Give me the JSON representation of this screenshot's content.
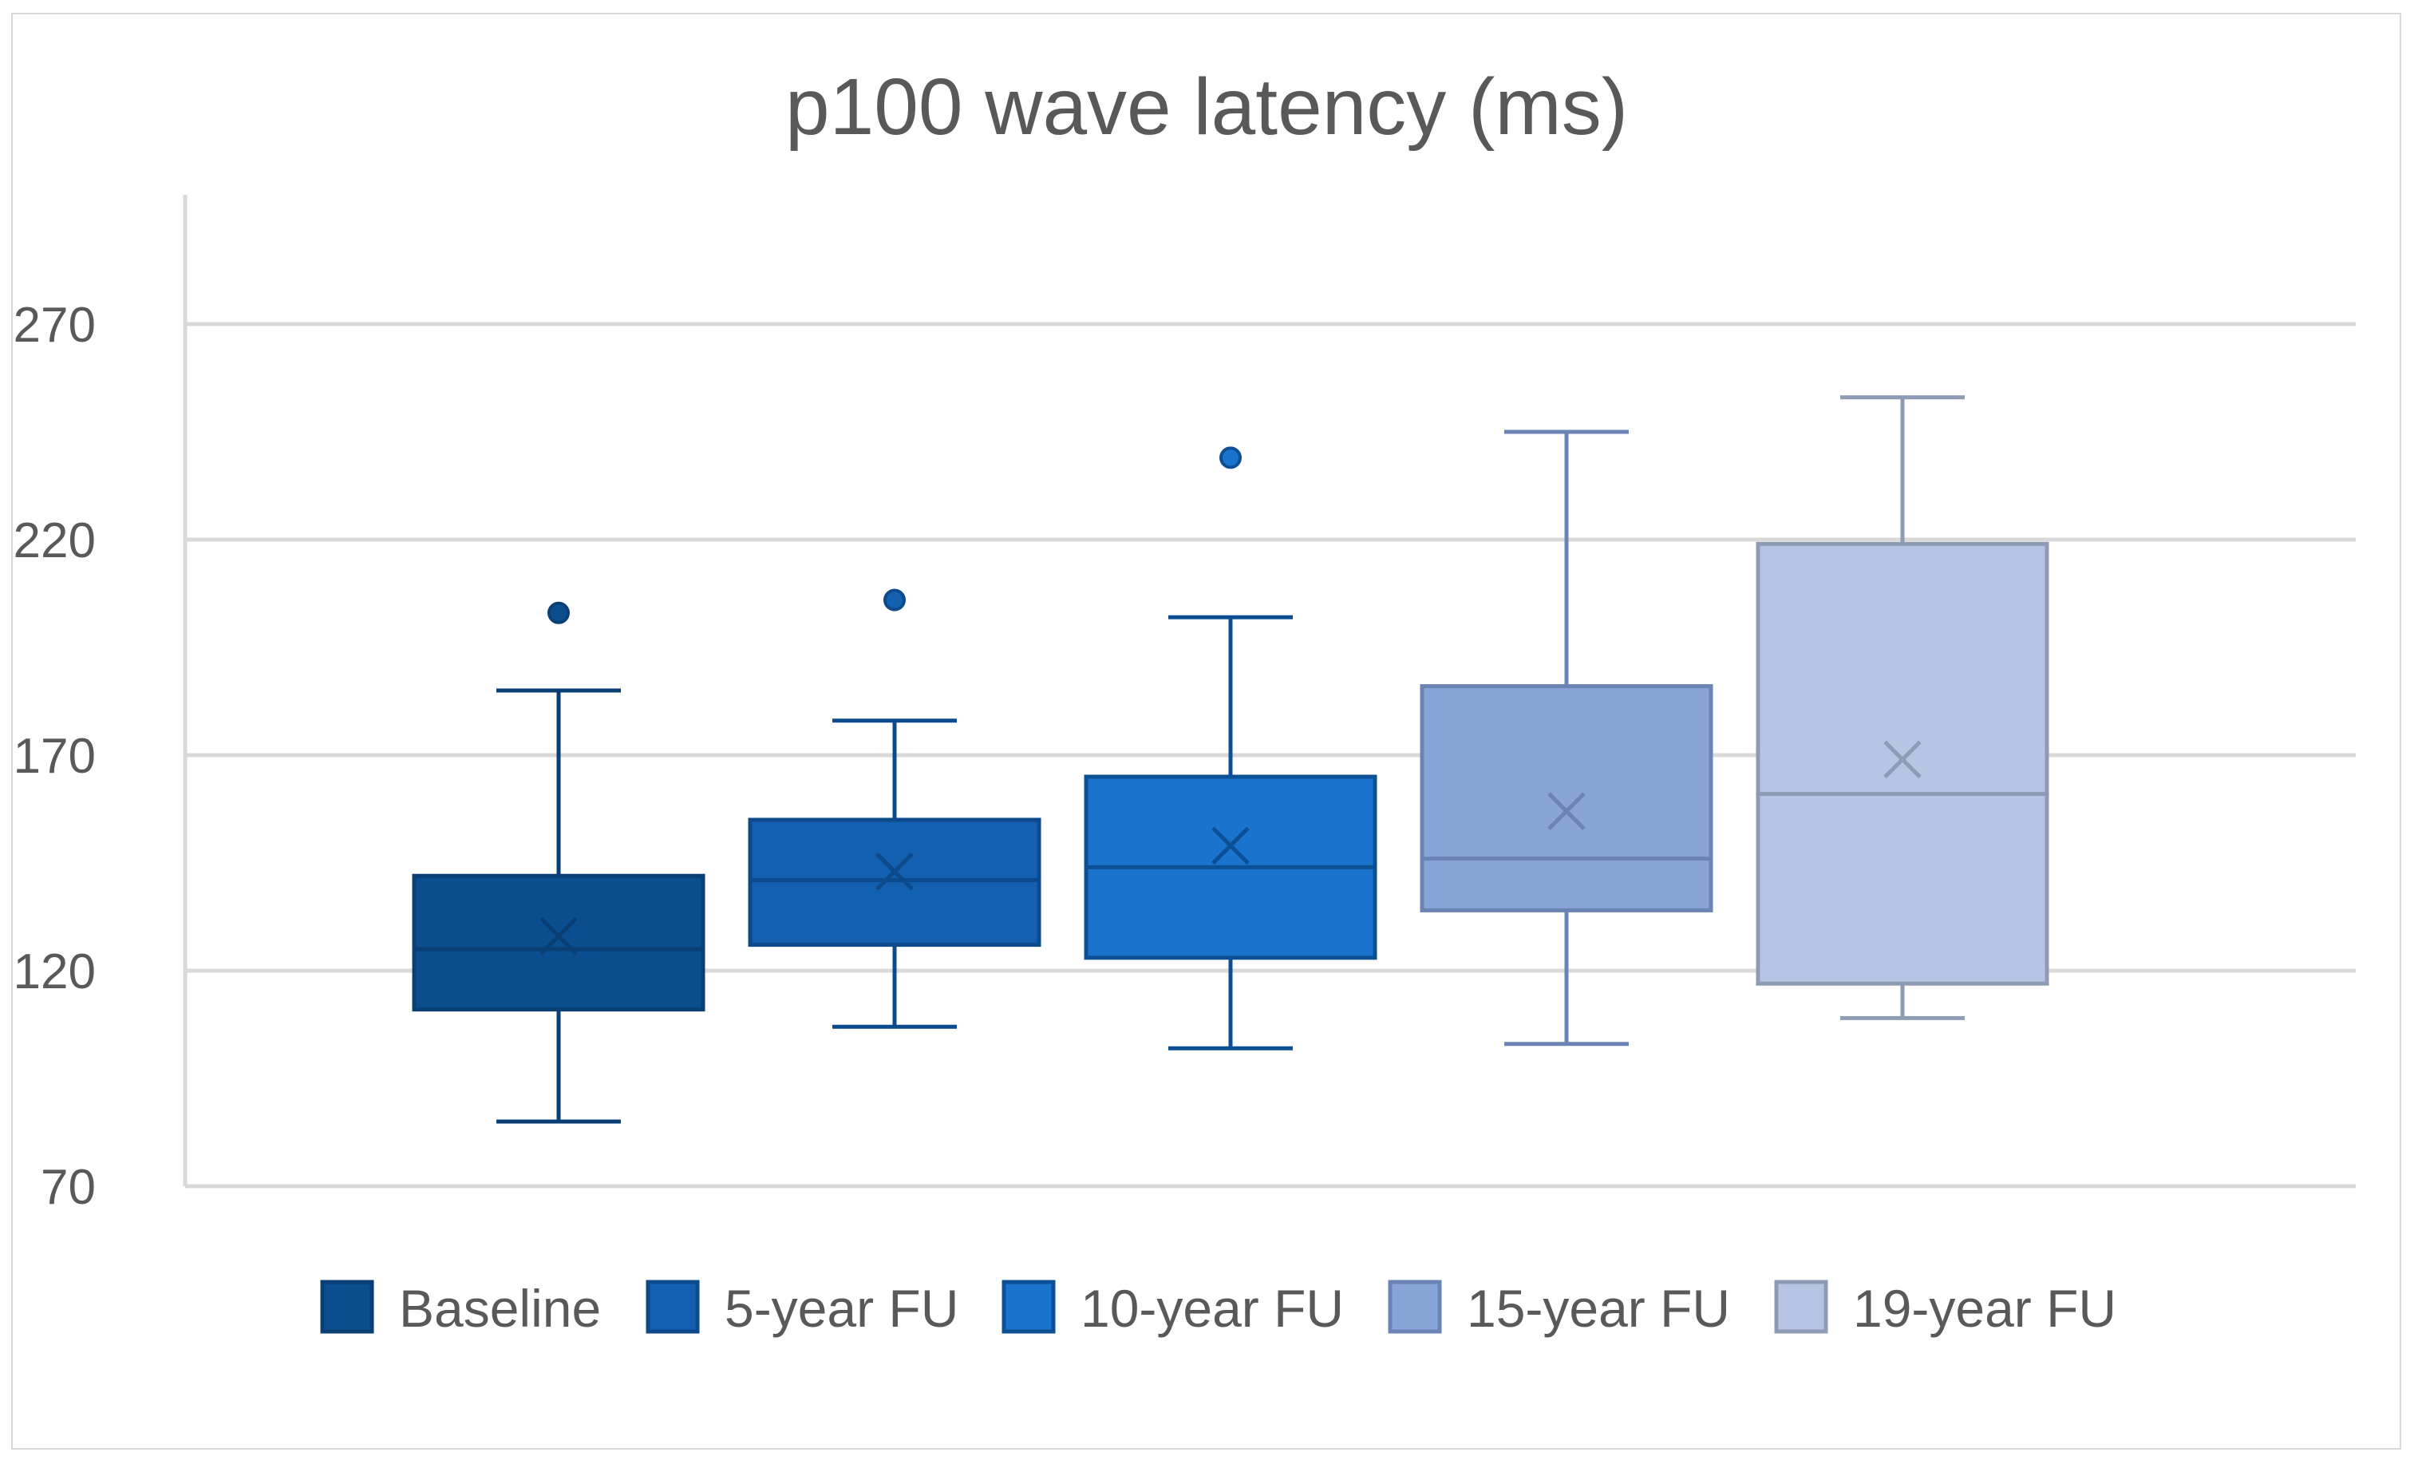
{
  "chart_data": {
    "type": "box",
    "title": "p100 wave latency (ms)",
    "xlabel": "",
    "ylabel": "",
    "ylim": [
      70,
      300
    ],
    "yticks": [
      70,
      120,
      170,
      220,
      270
    ],
    "grid": true,
    "legend_position": "bottom",
    "series": [
      {
        "name": "Baseline",
        "color": "#0b4e8f",
        "stroke": "#0a3f75",
        "min": 85,
        "q1": 111,
        "median": 125,
        "q3": 142,
        "max": 185,
        "mean": 128,
        "outliers": [
          203
        ]
      },
      {
        "name": "5-year FU",
        "color": "#1460b0",
        "stroke": "#0d4a8c",
        "min": 107,
        "q1": 126,
        "median": 141,
        "q3": 155,
        "max": 178,
        "mean": 143,
        "outliers": [
          206
        ]
      },
      {
        "name": "10-year FU",
        "color": "#1a73cc",
        "stroke": "#0d4f94",
        "min": 102,
        "q1": 123,
        "median": 144,
        "q3": 165,
        "max": 202,
        "mean": 149,
        "outliers": [
          239
        ]
      },
      {
        "name": "15-year FU",
        "color": "#89a5d8",
        "stroke": "#6b84b5",
        "min": 103,
        "q1": 134,
        "median": 146,
        "q3": 186,
        "max": 245,
        "mean": 157,
        "outliers": []
      },
      {
        "name": "19-year FU",
        "color": "#b5c5e3",
        "stroke": "#8e9bb5",
        "min": 109,
        "q1": 117,
        "median": 161,
        "q3": 219,
        "max": 253,
        "mean": 169,
        "outliers": []
      }
    ]
  }
}
